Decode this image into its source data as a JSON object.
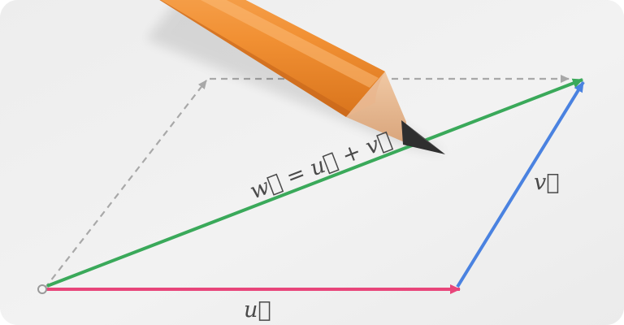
{
  "diagram": {
    "labels": {
      "sum": "w⃗ = u⃗ + v⃗",
      "u": "u⃗",
      "v": "v⃗"
    },
    "colors": {
      "u": "#e8457a",
      "v": "#4a82e0",
      "w": "#3aa95a",
      "guide": "#a8a8a8",
      "background": "#eeeeee"
    },
    "object": "pencil"
  }
}
